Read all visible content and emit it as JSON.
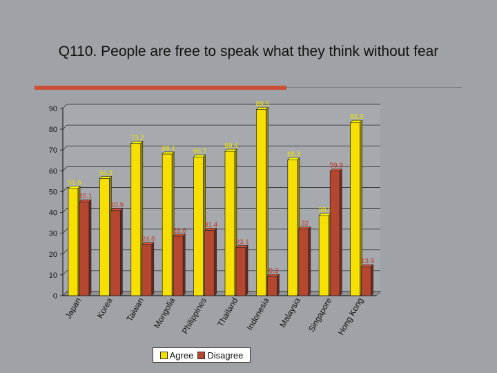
{
  "slide": {
    "title": "Q110. People are free to speak what they think without fear"
  },
  "chart_data": {
    "type": "bar",
    "title": "",
    "xlabel": "",
    "ylabel": "",
    "ylim": [
      0,
      90
    ],
    "yticks": [
      0,
      10,
      20,
      30,
      40,
      50,
      60,
      70,
      80,
      90
    ],
    "grid": true,
    "legend_position": "bottom",
    "categories": [
      "Japan",
      "Korea",
      "Taiwan",
      "Mongolia",
      "Philippines",
      "Thailand",
      "Indonesia",
      "Malaysia",
      "Singapore",
      "Hong Kong"
    ],
    "series": [
      {
        "name": "Agree",
        "color": "#f7e000",
        "values": [
          51.6,
          56.3,
          73.2,
          68.1,
          66.7,
          69.4,
          89.5,
          65.3,
          38.5,
          83.3
        ],
        "labels": [
          "51.6",
          "56.3",
          "73.2",
          "68.1",
          "66.7",
          "69.4",
          "89.5",
          "65.3",
          "38.5",
          "83.3"
        ]
      },
      {
        "name": "Disagree",
        "color": "#b5462f",
        "values": [
          45.1,
          40.9,
          24.6,
          28.6,
          31.4,
          23.1,
          9.3,
          32.0,
          59.9,
          13.9
        ],
        "labels": [
          "45.1",
          "40.9",
          "24.6",
          "28.6",
          "31.4",
          "23.1",
          "9.3",
          "32",
          "59.9",
          "13.9"
        ]
      }
    ]
  }
}
